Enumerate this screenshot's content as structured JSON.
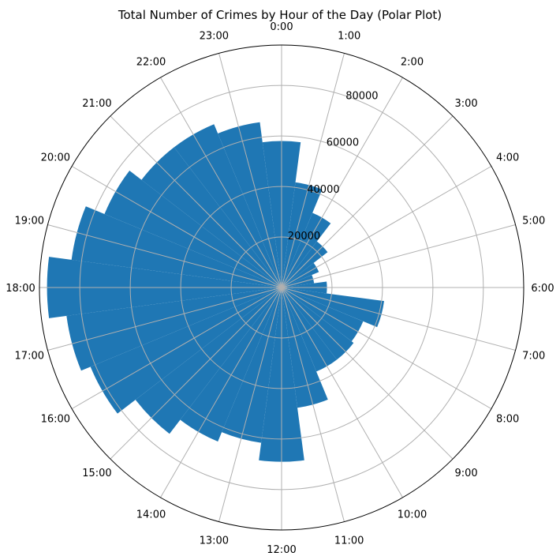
{
  "chart_data": {
    "type": "bar",
    "projection": "polar",
    "title": "Total Number of Crimes by Hour of the Day (Polar Plot)",
    "direction": "clockwise",
    "zero_location": "top",
    "categories": [
      "0:00",
      "1:00",
      "2:00",
      "3:00",
      "4:00",
      "5:00",
      "6:00",
      "7:00",
      "8:00",
      "9:00",
      "10:00",
      "11:00",
      "12:00",
      "13:00",
      "14:00",
      "15:00",
      "16:00",
      "17:00",
      "18:00",
      "19:00",
      "20:00",
      "21:00",
      "22:00",
      "23:00"
    ],
    "values": [
      58000,
      42000,
      32000,
      23000,
      16000,
      13000,
      18000,
      41000,
      35000,
      36000,
      36000,
      48000,
      69000,
      62000,
      66000,
      73000,
      82000,
      86000,
      93000,
      84000,
      76000,
      70000,
      70000,
      66000
    ],
    "radial_ticks": [
      "20000",
      "40000",
      "60000",
      "80000"
    ],
    "radial_tick_values": [
      20000,
      40000,
      60000,
      80000
    ],
    "rlim": [
      0,
      96000
    ],
    "grid": true,
    "bar_color": "#1f77b4"
  }
}
